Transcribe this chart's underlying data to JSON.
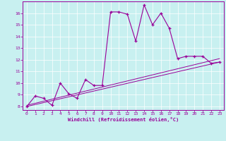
{
  "xlabel": "Windchill (Refroidissement éolien,°C)",
  "ylabel": "",
  "bg_color": "#c8f0f0",
  "line_color": "#990099",
  "xlim": [
    -0.5,
    23.5
  ],
  "ylim": [
    7.7,
    17.0
  ],
  "yticks": [
    8,
    9,
    10,
    11,
    12,
    13,
    14,
    15,
    16
  ],
  "xticks": [
    0,
    1,
    2,
    3,
    4,
    5,
    6,
    7,
    8,
    9,
    10,
    11,
    12,
    13,
    14,
    15,
    16,
    17,
    18,
    19,
    20,
    21,
    22,
    23
  ],
  "curve1_x": [
    0,
    1,
    2,
    3,
    4,
    5,
    6,
    7,
    8,
    9,
    10,
    11,
    12,
    13,
    14,
    15,
    16,
    17,
    18,
    19,
    20,
    21,
    22,
    23
  ],
  "curve1_y": [
    8.0,
    8.9,
    8.7,
    8.1,
    10.0,
    9.1,
    8.7,
    10.3,
    9.8,
    9.8,
    16.1,
    16.1,
    15.9,
    13.6,
    16.7,
    15.0,
    16.0,
    14.7,
    12.1,
    12.3,
    12.3,
    12.3,
    11.7,
    11.8
  ],
  "line1_x": [
    0,
    23
  ],
  "line1_y": [
    8.0,
    11.8
  ],
  "line2_x": [
    0,
    23
  ],
  "line2_y": [
    8.1,
    12.1
  ]
}
